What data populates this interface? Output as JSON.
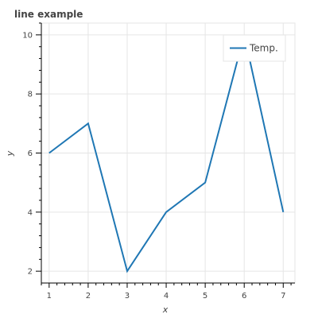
{
  "chart_data": {
    "type": "line",
    "title": "line example",
    "xlabel": "x",
    "ylabel": "y",
    "x": [
      1,
      2,
      3,
      4,
      5,
      6,
      7
    ],
    "series": [
      {
        "name": "Temp.",
        "values": [
          6,
          7,
          2,
          4,
          5,
          10,
          4
        ],
        "color": "#1f77b4"
      }
    ],
    "xlim": [
      0.8,
      7.3
    ],
    "ylim": [
      1.6,
      10.4
    ],
    "x_ticks": [
      "1",
      "2",
      "3",
      "4",
      "5",
      "6",
      "7"
    ],
    "y_ticks": [
      "2",
      "4",
      "6",
      "8",
      "10"
    ],
    "grid": true,
    "legend_position": "top-right"
  }
}
